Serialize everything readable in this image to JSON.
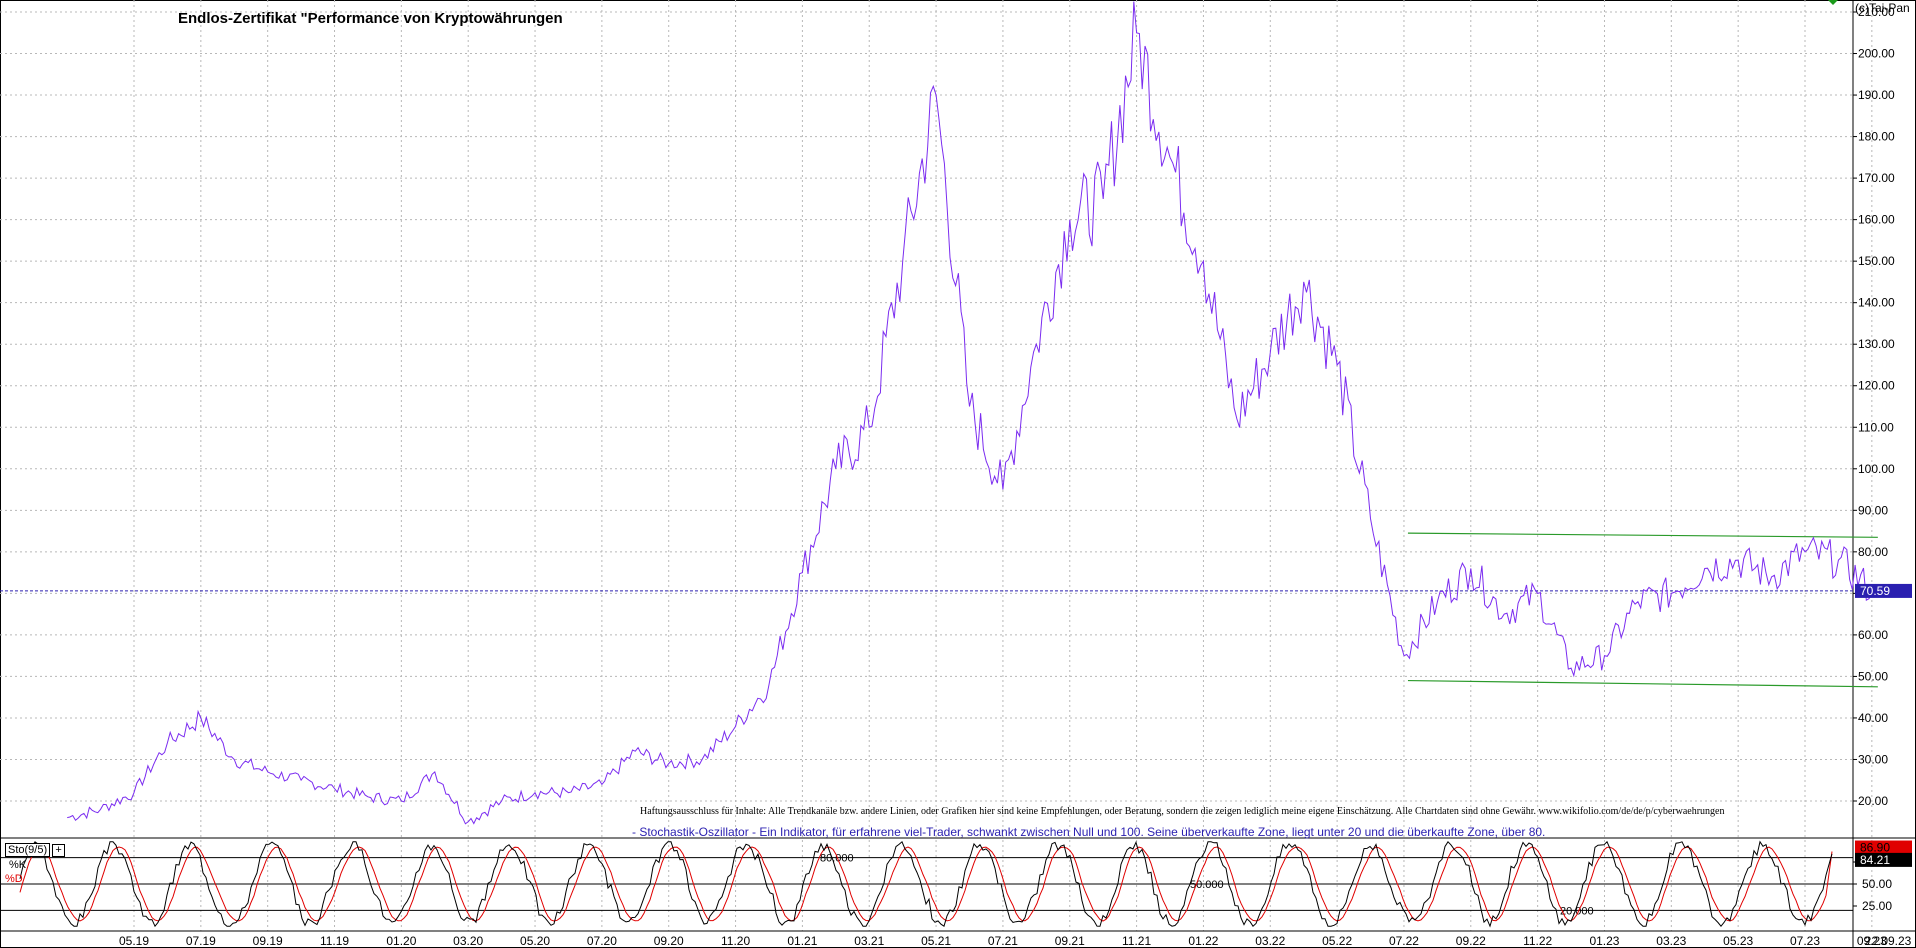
{
  "title": "Endlos-Zertifikat \"Performance von Kryptowährungen",
  "copyright": "(c)Tai-Pan",
  "disclaimer": "Haftungsausschluss für Inhalte: Alle Trendkanäle bzw. andere Linien, oder Grafiken hier sind keine Empfehlungen, oder Beratung, sondern die zeigen lediglich meine eigene Einschätzung. Alle Chartdaten sind ohne Gewähr. www.wikifolio.com/de/de/p/cyberwaehrungen",
  "stochastic_note": "- Stochastik-Oszillator - Ein Indikator, für erfahrene viel-Trader, schwankt zwischen Null und 100. Seine überverkaufte Zone, liegt unter 20 und die überkaufte Zone, über 80.",
  "indicator": {
    "label": "Sto(9/5)",
    "k_label": "%K",
    "d_label": "%D",
    "k_value": "84.21",
    "d_value": "86.90"
  },
  "colors": {
    "price_line": "#7b2cf0",
    "trend_lines": "#2a9a2a",
    "last_price_line": "#2a1fb0",
    "stoch_k": "#000000",
    "stoch_d": "#e00000",
    "last_price_badge": "#2a1fb0",
    "d_badge": "#e00000"
  },
  "chart_data": [
    {
      "type": "line",
      "title": "Endlos-Zertifikat \"Performance von Kryptowährungen",
      "x_tick_labels": [
        "05.19",
        "07.19",
        "09.19",
        "11.19",
        "01.20",
        "03.20",
        "05.20",
        "07.20",
        "09.20",
        "11.20",
        "01.21",
        "03.21",
        "05.21",
        "07.21",
        "09.21",
        "11.21",
        "01.22",
        "03.22",
        "05.22",
        "07.22",
        "09.22",
        "11.22",
        "01.23",
        "03.23",
        "05.23",
        "07.23",
        "09.23"
      ],
      "y_tick_labels": [
        "20.00",
        "30.00",
        "40.00",
        "50.00",
        "60.00",
        "70.00",
        "80.00",
        "90.00",
        "100.00",
        "110.00",
        "120.00",
        "130.00",
        "140.00",
        "150.00",
        "160.00",
        "170.00",
        "180.00",
        "190.00",
        "200.00",
        "210.00"
      ],
      "ylim": [
        13,
        215
      ],
      "last_value": "70.59",
      "last_date": "22.09.23",
      "grid": true,
      "series": [
        {
          "values_by_month": [
            [
              "2019-03",
              16
            ],
            [
              "2019-04",
              18
            ],
            [
              "2019-05",
              22
            ],
            [
              "2019-06",
              34
            ],
            [
              "2019-07",
              40
            ],
            [
              "2019-08",
              30
            ],
            [
              "2019-09",
              27
            ],
            [
              "2019-10",
              25
            ],
            [
              "2019-11",
              23
            ],
            [
              "2019-12",
              21
            ],
            [
              "2020-01",
              20
            ],
            [
              "2020-02",
              27
            ],
            [
              "2020-03",
              15
            ],
            [
              "2020-04",
              20
            ],
            [
              "2020-05",
              22
            ],
            [
              "2020-06",
              22
            ],
            [
              "2020-07",
              24
            ],
            [
              "2020-08",
              32
            ],
            [
              "2020-09",
              29
            ],
            [
              "2020-10",
              30
            ],
            [
              "2020-11",
              38
            ],
            [
              "2020-12",
              48
            ],
            [
              "2021-01",
              75
            ],
            [
              "2021-02",
              100
            ],
            [
              "2021-03",
              110
            ],
            [
              "2021-04",
              150
            ],
            [
              "2021-05",
              190
            ],
            [
              "2021-06",
              115
            ],
            [
              "2021-07",
              95
            ],
            [
              "2021-08",
              130
            ],
            [
              "2021-09",
              160
            ],
            [
              "2021-10",
              165
            ],
            [
              "2021-11",
              205
            ],
            [
              "2021-12",
              175
            ],
            [
              "2022-01",
              150
            ],
            [
              "2022-02",
              112
            ],
            [
              "2022-03",
              128
            ],
            [
              "2022-04",
              145
            ],
            [
              "2022-05",
              125
            ],
            [
              "2022-06",
              88
            ],
            [
              "2022-07",
              55
            ],
            [
              "2022-08",
              68
            ],
            [
              "2022-09",
              76
            ],
            [
              "2022-10",
              65
            ],
            [
              "2022-11",
              70
            ],
            [
              "2022-12",
              52
            ],
            [
              "2023-01",
              55
            ],
            [
              "2023-02",
              68
            ],
            [
              "2023-03",
              70
            ],
            [
              "2023-04",
              76
            ],
            [
              "2023-05",
              78
            ],
            [
              "2023-06",
              74
            ],
            [
              "2023-07",
              80
            ],
            [
              "2023-08",
              78
            ],
            [
              "2023-09",
              70.59
            ]
          ]
        }
      ],
      "trend_lines": [
        {
          "from": [
            "2022-07",
            84.5
          ],
          "to": [
            "2023-09",
            83.5
          ]
        },
        {
          "from": [
            "2022-07",
            49.0
          ],
          "to": [
            "2023-09",
            47.5
          ]
        }
      ]
    },
    {
      "type": "line",
      "title": "Sto(9/5)",
      "y_tick_labels": [
        "25.00",
        "50.00",
        "75.00"
      ],
      "ylim": [
        0,
        100
      ],
      "reference_levels": [
        "80.000",
        "50.000",
        "20.000"
      ],
      "series": [
        {
          "name": "%K",
          "last_value": 84.21
        },
        {
          "name": "%D",
          "last_value": 86.9
        }
      ]
    }
  ]
}
